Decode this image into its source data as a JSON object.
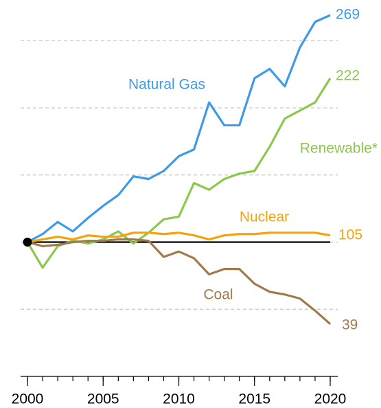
{
  "chart_data": {
    "type": "line",
    "x": [
      2000,
      2001,
      2002,
      2003,
      2004,
      2005,
      2006,
      2007,
      2008,
      2009,
      2010,
      2011,
      2012,
      2013,
      2014,
      2015,
      2016,
      2017,
      2018,
      2019,
      2020
    ],
    "series": [
      {
        "name": "Natural Gas",
        "color": "#3d9be9",
        "values": [
          100,
          106,
          115,
          108,
          118,
          127,
          135,
          149,
          147,
          153,
          164,
          169,
          204,
          187,
          187,
          222,
          229,
          216,
          245,
          264,
          269
        ]
      },
      {
        "name": "Renewable*",
        "color": "#8cc84b",
        "values": [
          100,
          81,
          97,
          101,
          99,
          102,
          108,
          99,
          107,
          117,
          119,
          144,
          139,
          147,
          151,
          153,
          171,
          192,
          198,
          204,
          222
        ]
      },
      {
        "name": "Nuclear",
        "color": "#f5a30a",
        "values": [
          100,
          102,
          104,
          102,
          105,
          104,
          104,
          107,
          107,
          106,
          107,
          105,
          102,
          105,
          106,
          106,
          107,
          107,
          107,
          107,
          105
        ]
      },
      {
        "name": "Coal",
        "color": "#a07a4b",
        "values": [
          100,
          97,
          98,
          100,
          101,
          101,
          102,
          102,
          101,
          89,
          93,
          88,
          76,
          80,
          80,
          69,
          63,
          61,
          58,
          49,
          39
        ]
      }
    ],
    "xlim": [
      2000,
      2020
    ],
    "xticks": [
      2000,
      2005,
      2010,
      2015,
      2020
    ],
    "ylim": [
      0,
      280
    ],
    "yticks": [
      50,
      100,
      150,
      200,
      250
    ],
    "grid": true
  }
}
